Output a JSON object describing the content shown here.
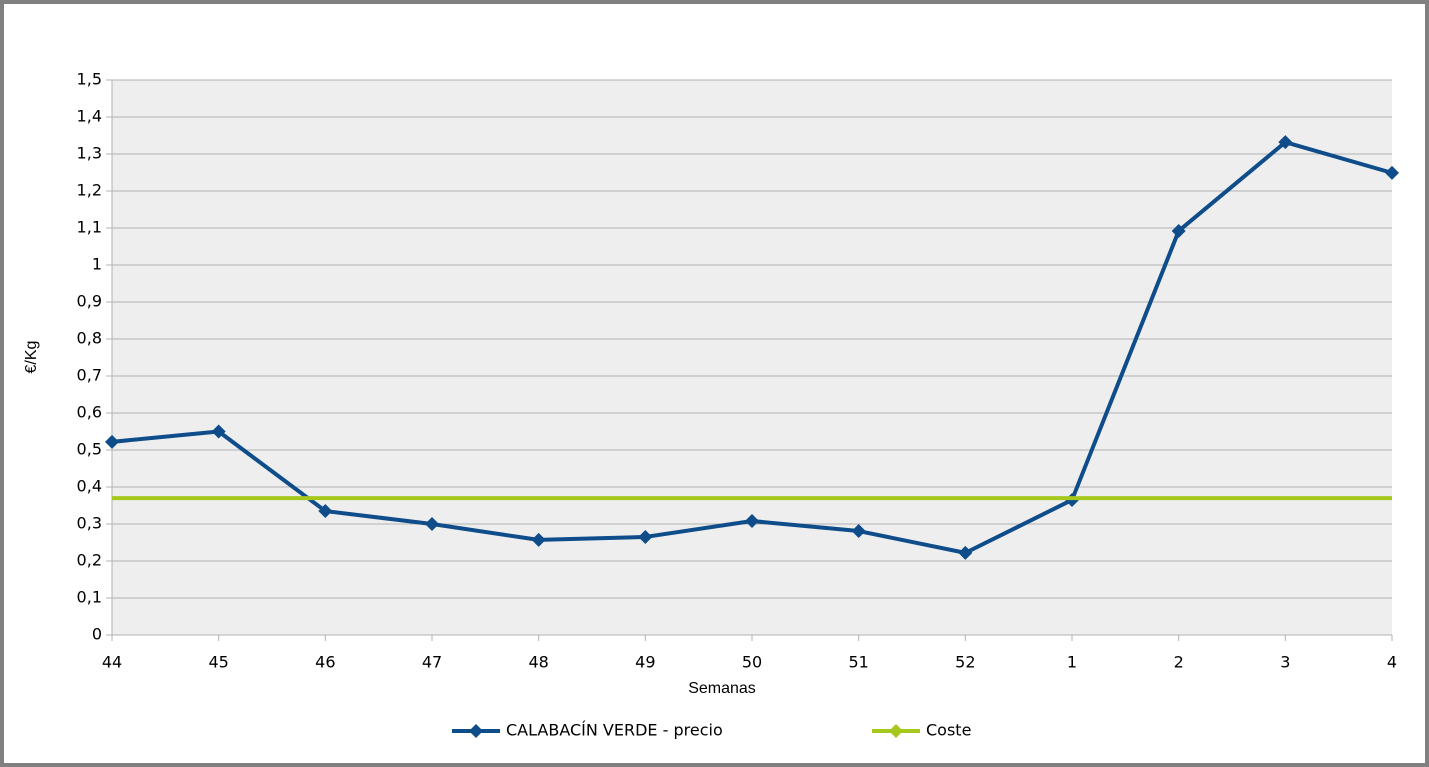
{
  "chart_data": {
    "type": "line",
    "categories": [
      "44",
      "45",
      "46",
      "47",
      "48",
      "49",
      "50",
      "51",
      "52",
      "1",
      "2",
      "3",
      "4"
    ],
    "series": [
      {
        "name": "CALABACÍN VERDE - precio",
        "color": "#0f4c8a",
        "marker": "diamond",
        "values": [
          0.522,
          0.55,
          0.335,
          0.3,
          0.257,
          0.265,
          0.308,
          0.281,
          0.222,
          0.365,
          1.092,
          1.332,
          1.249
        ]
      },
      {
        "name": "Coste",
        "color": "#a6c81c",
        "values": [
          0.37,
          0.37,
          0.37,
          0.37,
          0.37,
          0.37,
          0.37,
          0.37,
          0.37,
          0.37,
          0.37,
          0.37,
          0.37
        ]
      }
    ],
    "ylabel": "€/Kg",
    "xlabel": "Semanas",
    "ylim": [
      0,
      1.5
    ],
    "yticks": [
      0,
      {
        "value": 0.1,
        "label": "0,1"
      },
      {
        "value": 0.2,
        "label": "0,2"
      },
      {
        "value": 0.3,
        "label": "0,3"
      },
      {
        "value": 0.4,
        "label": "0,4"
      },
      {
        "value": 0.5,
        "label": "0,5"
      },
      {
        "value": 0.6,
        "label": "0,6"
      },
      {
        "value": 0.7,
        "label": "0,7"
      },
      {
        "value": 0.8,
        "label": "0,8"
      },
      {
        "value": 0.9,
        "label": "0,9"
      },
      1,
      {
        "value": 1.1,
        "label": "1,1"
      },
      {
        "value": 1.2,
        "label": "1,2"
      },
      {
        "value": 1.3,
        "label": "1,3"
      },
      {
        "value": 1.4,
        "label": "1,4"
      },
      {
        "value": 1.5,
        "label": "1,5"
      }
    ],
    "grid": true,
    "legend": "bottom"
  }
}
